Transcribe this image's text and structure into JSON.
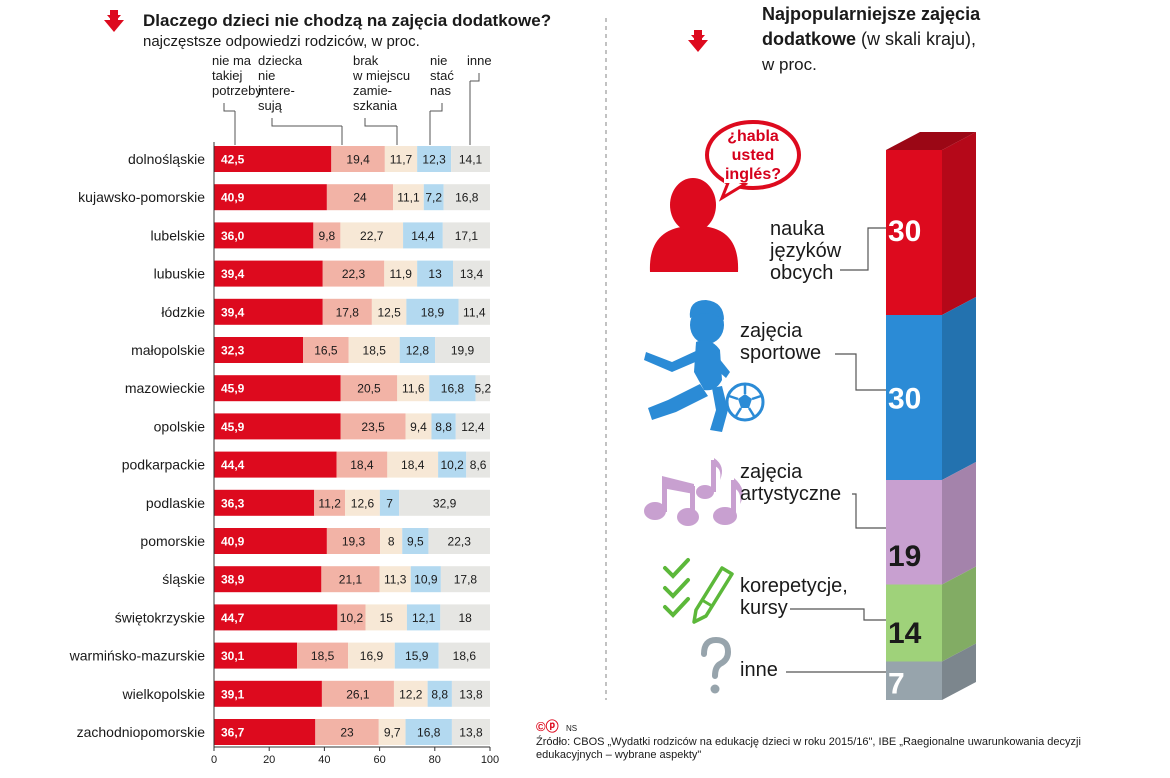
{
  "colors": {
    "red": "#dd0a1e",
    "salmon": "#f2b3a6",
    "beige": "#f7e8d6",
    "lightblue": "#b3d9f0",
    "lightgray": "#e6e6e3",
    "blue_col": "#2b8bd6",
    "purple_col": "#c8a0d0",
    "green_col": "#9fd27a",
    "gray_col": "#97a4ac"
  },
  "left": {
    "title": "Dlaczego dzieci nie chodzą na zajęcia dodatkowe?",
    "subtitle": "najczęstsze odpowiedzi rodziców, w proc.",
    "icon": "red-down-arrow-icon"
  },
  "right": {
    "title_line1": "Najpopularniejsze zajęcia",
    "title_line2_bold": "dodatkowe",
    "title_line2_rest": " (w skali kraju),",
    "title_line3": "w proc.",
    "icon": "red-down-arrow-icon",
    "speech_bubble": [
      "¿habla",
      "usted",
      "inglés?"
    ]
  },
  "source": {
    "copyright": "©ⓟ",
    "initials": "NS",
    "line1": "Źródło: CBOS „Wydatki rodziców na edukację dzieci w roku 2015/16\", IBE „Raegionalne uwarunkowania decyzji",
    "line2": "edukacyjnych – wybrane aspekty\""
  },
  "chart_data": [
    {
      "type": "bar",
      "orientation": "horizontal",
      "stacked": true,
      "title": "Dlaczego dzieci nie chodzą na zajęcia dodatkowe?",
      "subtitle": "najczęstsze odpowiedzi rodziców, w proc.",
      "xlim": [
        0,
        100
      ],
      "xticks": [
        0,
        20,
        40,
        60,
        80,
        100
      ],
      "grid": false,
      "series_headers": [
        [
          "nie ma",
          "takiej",
          "potrzeby"
        ],
        [
          "dziecka",
          "nie",
          "intere-",
          "sują"
        ],
        [
          "brak",
          "w miejscu",
          "zamie-",
          "szkania"
        ],
        [
          "nie",
          "stać",
          "nas"
        ],
        [
          "inne"
        ]
      ],
      "categories": [
        "dolnośląskie",
        "kujawsko-pomorskie",
        "lubelskie",
        "lubuskie",
        "łódzkie",
        "małopolskie",
        "mazowieckie",
        "opolskie",
        "podkarpackie",
        "podlaskie",
        "pomorskie",
        "śląskie",
        "świętokrzyskie",
        "warmińsko-mazurskie",
        "wielkopolskie",
        "zachodniopomorskie"
      ],
      "series": [
        {
          "name": "nie ma takiej potrzeby",
          "color": "#dd0a1e",
          "values": [
            42.5,
            40.9,
            36.0,
            39.4,
            39.4,
            32.3,
            45.9,
            45.9,
            44.4,
            36.3,
            40.9,
            38.9,
            44.7,
            30.1,
            39.1,
            36.7
          ],
          "labels": [
            "42,5",
            "40,9",
            "36,0",
            "39,4",
            "39,4",
            "32,3",
            "45,9",
            "45,9",
            "44,4",
            "36,3",
            "40,9",
            "38,9",
            "44,7",
            "30,1",
            "39,1",
            "36,7"
          ]
        },
        {
          "name": "dziecka nie interesują",
          "color": "#f2b3a6",
          "values": [
            19.4,
            24,
            9.8,
            22.3,
            17.8,
            16.5,
            20.5,
            23.5,
            18.4,
            11.2,
            19.3,
            21.1,
            10.2,
            18.5,
            26.1,
            23
          ],
          "labels": [
            "19,4",
            "24",
            "9,8",
            "22,3",
            "17,8",
            "16,5",
            "20,5",
            "23,5",
            "18,4",
            "11,2",
            "19,3",
            "21,1",
            "10,2",
            "18,5",
            "26,1",
            "23"
          ]
        },
        {
          "name": "brak w miejscu zamieszkania",
          "color": "#f7e8d6",
          "values": [
            11.7,
            11.1,
            22.7,
            11.9,
            12.5,
            18.5,
            11.6,
            9.4,
            18.4,
            12.6,
            8,
            11.3,
            15,
            16.9,
            12.2,
            9.7
          ],
          "labels": [
            "11,7",
            "11,1",
            "22,7",
            "11,9",
            "12,5",
            "18,5",
            "11,6",
            "9,4",
            "18,4",
            "12,6",
            "8",
            "11,3",
            "15",
            "16,9",
            "12,2",
            "9,7"
          ]
        },
        {
          "name": "nie stać nas",
          "color": "#b3d9f0",
          "values": [
            12.3,
            7.2,
            14.4,
            13,
            18.9,
            12.8,
            16.8,
            8.8,
            10.2,
            7,
            9.5,
            10.9,
            12.1,
            15.9,
            8.8,
            16.8
          ],
          "labels": [
            "12,3",
            "7,2",
            "14,4",
            "13",
            "18,9",
            "12,8",
            "16,8",
            "8,8",
            "10,2",
            "7",
            "9,5",
            "10,9",
            "12,1",
            "15,9",
            "8,8",
            "16,8"
          ]
        },
        {
          "name": "inne",
          "color": "#e6e6e3",
          "values": [
            14.1,
            16.8,
            17.1,
            13.4,
            11.4,
            19.9,
            5.2,
            12.4,
            8.6,
            32.9,
            22.3,
            17.8,
            18,
            18.6,
            13.8,
            13.8
          ],
          "labels": [
            "14,1",
            "16,8",
            "17,1",
            "13,4",
            "11,4",
            "19,9",
            "5,2",
            "12,4",
            "8,6",
            "32,9",
            "22,3",
            "17,8",
            "18",
            "18,6",
            "13,8",
            "13,8"
          ]
        }
      ]
    },
    {
      "type": "bar",
      "orientation": "vertical",
      "stacked": true,
      "style": "3d-column",
      "title": "Najpopularniejsze zajęcia dodatkowe (w skali kraju), w proc.",
      "segments": [
        {
          "name": "nauka języków obcych",
          "lines": [
            "nauka",
            "języków",
            "obcych"
          ],
          "value": 30,
          "color": "#dd0a1e",
          "icon": "person-speech-bubble-icon"
        },
        {
          "name": "zajęcia sportowe",
          "lines": [
            "zajęcia",
            "sportowe"
          ],
          "value": 30,
          "color": "#2b8bd6",
          "icon": "child-football-icon"
        },
        {
          "name": "zajęcia artystyczne",
          "lines": [
            "zajęcia",
            "artystyczne"
          ],
          "value": 19,
          "color": "#c8a0d0",
          "icon": "music-notes-icon"
        },
        {
          "name": "korepetycje, kursy",
          "lines": [
            "korepetycje,",
            "kursy"
          ],
          "value": 14,
          "color": "#9fd27a",
          "icon": "checklist-pencil-icon"
        },
        {
          "name": "inne",
          "lines": [
            "inne"
          ],
          "value": 7,
          "color": "#97a4ac",
          "icon": "question-mark-icon"
        }
      ]
    }
  ]
}
